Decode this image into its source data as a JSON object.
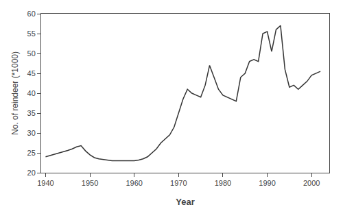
{
  "chart_data": {
    "type": "line",
    "x": [
      1940,
      1941,
      1942,
      1943,
      1944,
      1945,
      1946,
      1947,
      1948,
      1949,
      1950,
      1951,
      1952,
      1953,
      1954,
      1955,
      1956,
      1957,
      1958,
      1959,
      1960,
      1961,
      1962,
      1963,
      1964,
      1965,
      1966,
      1967,
      1968,
      1969,
      1970,
      1971,
      1972,
      1973,
      1974,
      1975,
      1976,
      1977,
      1978,
      1979,
      1980,
      1981,
      1982,
      1983,
      1984,
      1985,
      1986,
      1987,
      1988,
      1989,
      1990,
      1991,
      1992,
      1993,
      1994,
      1995,
      1996,
      1997,
      1998,
      1999,
      2000,
      2001,
      2002
    ],
    "values": [
      24.0,
      24.3,
      24.6,
      25.0,
      25.3,
      25.6,
      26.0,
      26.5,
      26.8,
      25.5,
      24.5,
      23.8,
      23.5,
      23.3,
      23.1,
      23.0,
      23.0,
      23.0,
      23.0,
      23.0,
      23.0,
      23.2,
      23.5,
      24.0,
      25.0,
      26.0,
      27.5,
      28.5,
      29.5,
      31.5,
      35.0,
      38.5,
      41.0,
      40.0,
      39.5,
      39.0,
      42.0,
      47.0,
      44.0,
      41.0,
      39.5,
      39.0,
      38.5,
      38.0,
      44.0,
      45.0,
      48.0,
      48.5,
      48.0,
      55.0,
      55.5,
      50.5,
      56.0,
      57.0,
      46.0,
      41.5,
      42.0,
      41.0,
      42.0,
      43.0,
      44.5,
      45.0,
      45.5
    ],
    "xlabel": "Year",
    "ylabel": "No. of reindeer (*1000)",
    "xlim": [
      1939,
      2004
    ],
    "ylim": [
      20,
      60
    ],
    "xticks": [
      1940,
      1950,
      1960,
      1970,
      1980,
      1990,
      2000
    ],
    "yticks": [
      20,
      25,
      30,
      35,
      40,
      45,
      50,
      55,
      60
    ],
    "color": "#333333",
    "grid": false
  }
}
